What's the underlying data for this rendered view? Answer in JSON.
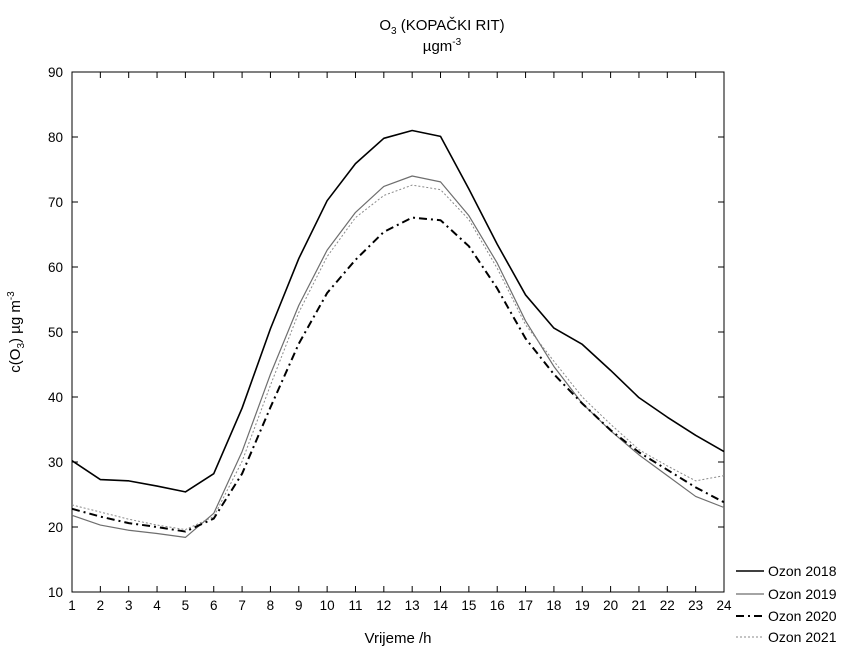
{
  "chart_data": {
    "type": "line",
    "title": "O3 (KOPAČKI RIT)",
    "title_main": "O",
    "title_sub": "3",
    "title_rest": " (KOPAČKI RIT)",
    "subtitle": "µgm-3",
    "subtitle_main": "µgm",
    "subtitle_sup": "-3",
    "xlabel": "Vrijeme /h",
    "ylabel": "c(O3) µg m-3",
    "ylabel_parts": {
      "a": "c(O",
      "sub": "3",
      "b": ") µg m",
      "sup": "-3"
    },
    "xlim": [
      1,
      24
    ],
    "ylim": [
      10,
      90
    ],
    "grid": false,
    "legend_position": "outside-bottom-right",
    "x": [
      1,
      2,
      3,
      4,
      5,
      6,
      7,
      8,
      9,
      10,
      11,
      12,
      13,
      14,
      15,
      16,
      17,
      18,
      19,
      20,
      21,
      22,
      23,
      24
    ],
    "x_ticks": [
      "1",
      "2",
      "3",
      "4",
      "5",
      "6",
      "7",
      "8",
      "9",
      "10",
      "11",
      "12",
      "13",
      "14",
      "15",
      "16",
      "17",
      "18",
      "19",
      "20",
      "21",
      "22",
      "23",
      "24"
    ],
    "y_ticks": [
      "10",
      "20",
      "30",
      "40",
      "50",
      "60",
      "70",
      "80",
      "90"
    ],
    "series": [
      {
        "name": "Ozon 2018",
        "style": "solid",
        "color": "#000000",
        "values": [
          30.2,
          27.3,
          27.1,
          26.3,
          25.4,
          28.2,
          38.3,
          50.5,
          61.3,
          70.2,
          75.9,
          79.8,
          81.0,
          80.1,
          72.0,
          63.5,
          55.7,
          50.6,
          48.1,
          44.1,
          39.9,
          36.9,
          34.1,
          31.6
        ]
      },
      {
        "name": "Ozon 2019",
        "style": "solid",
        "color": "#6e6e6e",
        "values": [
          21.8,
          20.3,
          19.5,
          19.0,
          18.4,
          22.1,
          31.6,
          43.5,
          54.1,
          62.6,
          68.4,
          72.4,
          74.0,
          73.1,
          67.9,
          60.6,
          51.7,
          44.7,
          39.0,
          34.8,
          31.1,
          27.9,
          24.7,
          23.0
        ]
      },
      {
        "name": "Ozon 2020",
        "style": "dashdot",
        "color": "#000000",
        "values": [
          22.8,
          21.6,
          20.6,
          20.0,
          19.3,
          21.3,
          28.2,
          38.4,
          48.2,
          56.0,
          61.1,
          65.4,
          67.6,
          67.2,
          63.2,
          56.7,
          49.0,
          43.5,
          39.0,
          34.9,
          31.5,
          28.8,
          26.1,
          23.8
        ]
      },
      {
        "name": "Ozon 2021",
        "style": "dotted",
        "color": "#8a8a8a",
        "values": [
          23.4,
          22.3,
          21.2,
          20.3,
          19.6,
          21.6,
          30.1,
          41.8,
          53.0,
          61.6,
          67.6,
          71.0,
          72.6,
          71.9,
          67.3,
          59.8,
          51.1,
          45.5,
          40.0,
          35.8,
          31.9,
          29.4,
          27.1,
          27.9
        ]
      }
    ]
  }
}
